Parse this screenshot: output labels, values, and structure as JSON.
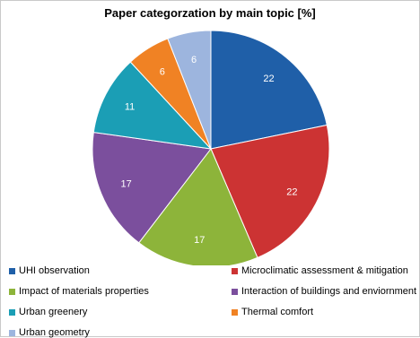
{
  "chart_data": {
    "type": "pie",
    "title": "Paper categorzation by main topic [%]",
    "categories": [
      "UHI observation",
      "Microclimatic assessment & mitigation",
      "Impact of materials properties",
      "Interaction of buildings and enviornment",
      "Urban greenery",
      "Thermal comfort",
      "Urban geometry"
    ],
    "values": [
      22,
      22,
      17,
      17,
      11,
      6,
      6
    ],
    "data_labels": [
      "22",
      "22",
      "17",
      "17",
      "11",
      "6",
      "6"
    ],
    "colors": [
      "#1F5FA8",
      "#CC3333",
      "#8DB43A",
      "#7B4F9D",
      "#1B9EB5",
      "#F08224",
      "#9DB5DE"
    ],
    "label_colors": [
      "#ffffff",
      "#ffffff",
      "#ffffff",
      "#ffffff",
      "#ffffff",
      "#ffffff",
      "#ffffff"
    ],
    "start_angle_deg": 0,
    "direction": "clockwise",
    "legend_position": "bottom"
  }
}
